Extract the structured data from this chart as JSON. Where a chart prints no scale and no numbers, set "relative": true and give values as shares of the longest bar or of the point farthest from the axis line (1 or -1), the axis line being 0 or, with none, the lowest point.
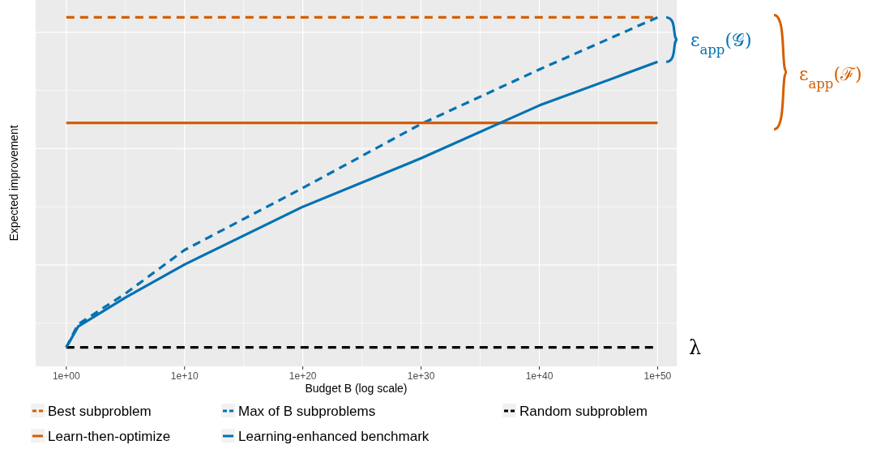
{
  "chart_data": {
    "type": "line",
    "relative": true,
    "log": "x",
    "grid": true,
    "legend": "bottom",
    "tick_labels": "x",
    "xlabel": "Budget B (log scale)",
    "ylabel": "Expected improvement",
    "xlim": [
      1,
      1e+50
    ],
    "xticks": [
      {
        "value": 1,
        "label": "1e+00"
      },
      {
        "value": 10000000000.0,
        "label": "1e+10"
      },
      {
        "value": 1e+20,
        "label": "1e+20"
      },
      {
        "value": 1e+30,
        "label": "1e+30"
      },
      {
        "value": 1e+40,
        "label": "1e+40"
      },
      {
        "value": 1e+50,
        "label": "1e+50"
      }
    ],
    "series": [
      {
        "name": "Best subproblem",
        "color": "#d55e00",
        "line_style": "dashed",
        "x": [
          1,
          1e+50
        ],
        "values": [
          1,
          1
        ]
      },
      {
        "name": "Max of B subproblems",
        "color": "#0072b2",
        "line_style": "dashed",
        "x": [
          1,
          10,
          100000.0,
          10000000000.0,
          1e+20,
          1e+30,
          1e+40,
          1e+50
        ],
        "values": [
          0,
          0.07,
          0.163,
          0.295,
          0.483,
          0.677,
          0.842,
          1
        ]
      },
      {
        "name": "Random subproblem",
        "color": "#000000",
        "line_style": "dashed",
        "x": [
          1,
          1e+50
        ],
        "values": [
          0,
          0
        ]
      },
      {
        "name": "Learn-then-optimize",
        "color": "#d55e00",
        "line_style": "solid",
        "x": [
          1,
          1e+50
        ],
        "values": [
          0.68,
          0.68
        ]
      },
      {
        "name": "Learning-enhanced benchmark",
        "color": "#0072b2",
        "line_style": "solid",
        "x": [
          1,
          10,
          100000.0,
          10000000000.0,
          1e+20,
          1e+30,
          1e+40,
          1e+50
        ],
        "values": [
          0,
          0.063,
          0.151,
          0.251,
          0.426,
          0.573,
          0.733,
          0.865
        ]
      }
    ],
    "annotations": [
      "ε$_{app}$(𝒢)",
      "ε$_{app}$(ℱ)",
      "λ"
    ]
  }
}
